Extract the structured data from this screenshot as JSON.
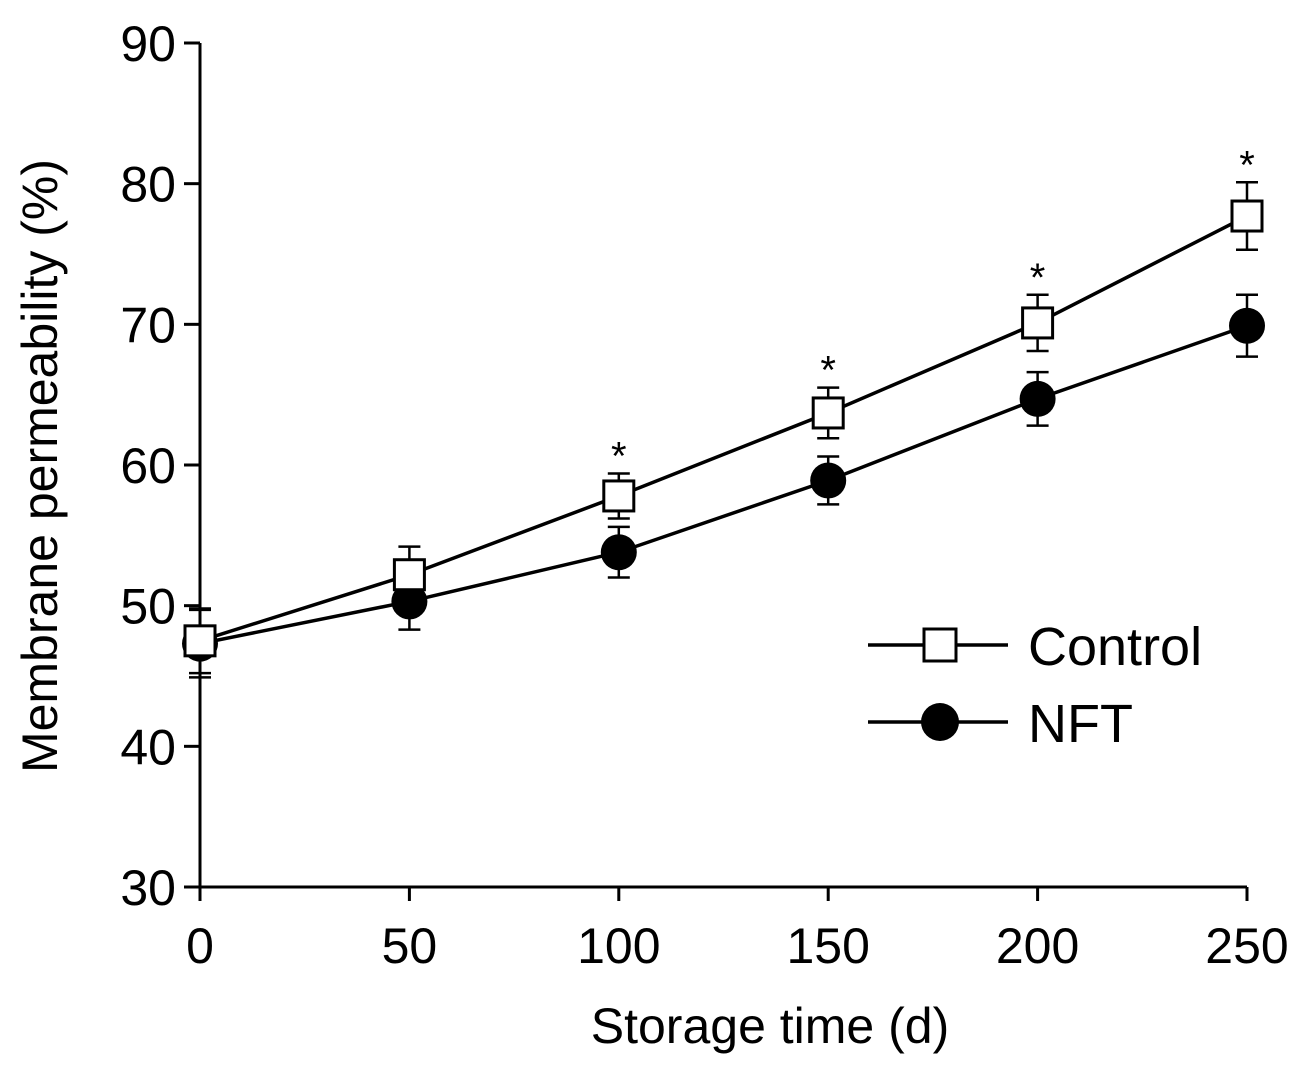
{
  "chart_data": {
    "type": "line",
    "title": "",
    "xlabel": "Storage time (d)",
    "ylabel": "Membrane permeability (%)",
    "x": [
      0,
      50,
      100,
      150,
      200,
      250
    ],
    "xlim": [
      0,
      250
    ],
    "ylim": [
      30,
      90
    ],
    "xticks": [
      "0",
      "50",
      "100",
      "150",
      "200",
      "250"
    ],
    "yticks": [
      "30",
      "40",
      "50",
      "60",
      "70",
      "80",
      "90"
    ],
    "grid": false,
    "legend_position": "bottom-right",
    "series": [
      {
        "name": "Control",
        "marker": "open-square",
        "values": [
          47.5,
          52.2,
          57.8,
          63.7,
          70.1,
          77.7
        ],
        "errors": [
          2.3,
          2.0,
          1.6,
          1.8,
          2.0,
          2.4
        ]
      },
      {
        "name": "NFT",
        "marker": "filled-circle",
        "values": [
          47.3,
          50.3,
          53.8,
          58.9,
          64.7,
          69.9
        ],
        "errors": [
          2.4,
          2.0,
          1.8,
          1.7,
          1.9,
          2.2
        ]
      }
    ],
    "annotations": [
      {
        "x": 100,
        "text": "*"
      },
      {
        "x": 150,
        "text": "*"
      },
      {
        "x": 200,
        "text": "*"
      },
      {
        "x": 250,
        "text": "*"
      }
    ]
  }
}
